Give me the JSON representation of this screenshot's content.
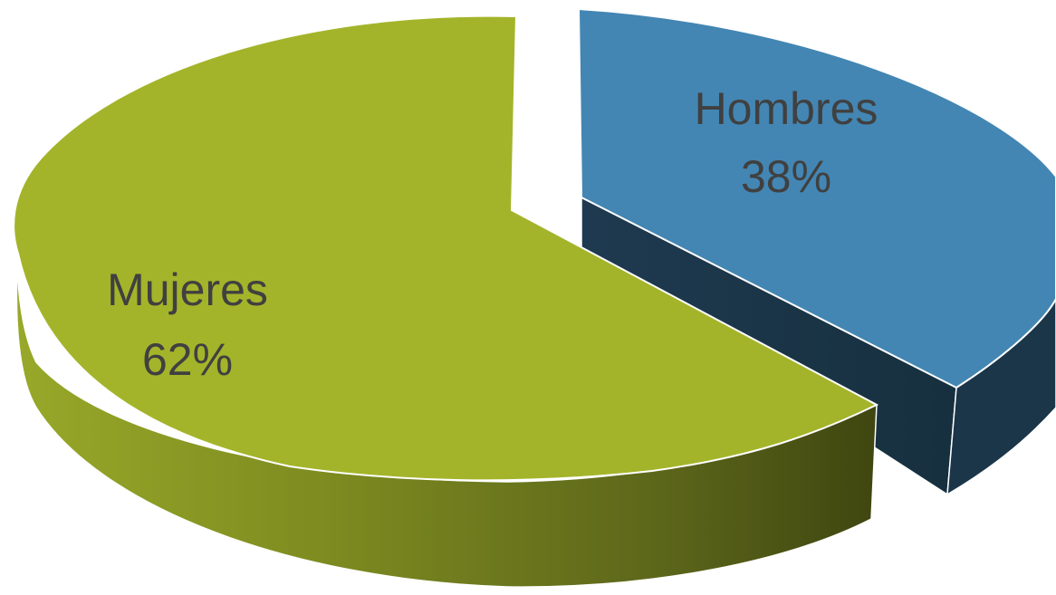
{
  "chart_data": {
    "type": "pie",
    "style": "3d-exploded",
    "legend": "none",
    "slices": [
      {
        "label": "Hombres",
        "percent_label": "38%",
        "value": 38,
        "color": "#4386b3",
        "side_color": "#1b3549"
      },
      {
        "label": "Mujeres",
        "percent_label": "62%",
        "value": 62,
        "color": "#a4b42a",
        "side_color": "#6f7c1c"
      }
    ]
  }
}
